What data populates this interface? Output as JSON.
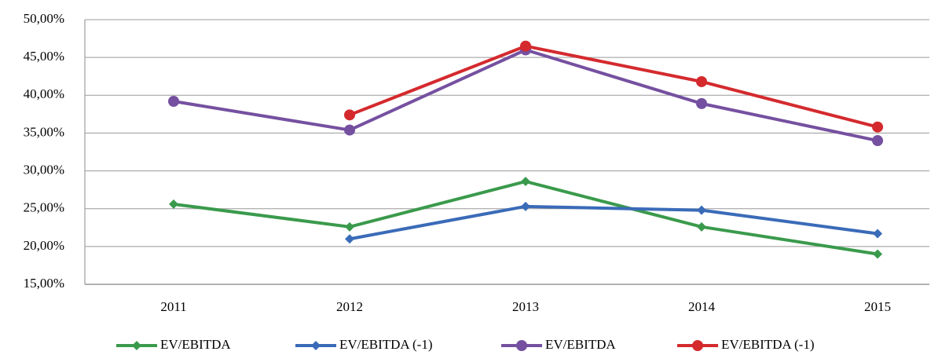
{
  "chart_data": {
    "type": "line",
    "categories": [
      "2011",
      "2012",
      "2013",
      "2014",
      "2015"
    ],
    "series": [
      {
        "name": "EV/EBITDA",
        "color": "#3a9a4c",
        "marker": "diamond",
        "values": [
          25.6,
          22.6,
          28.6,
          22.6,
          19.0
        ]
      },
      {
        "name": "EV/EBITDA (-1)",
        "color": "#3a6bb8",
        "marker": "diamond",
        "values": [
          null,
          21.0,
          25.3,
          24.8,
          21.7
        ]
      },
      {
        "name": "EV/EBITDA",
        "color": "#7550a0",
        "marker": "circle",
        "values": [
          39.2,
          35.4,
          46.0,
          38.9,
          34.0
        ]
      },
      {
        "name": "EV/EBITDA (-1)",
        "color": "#d42a2e",
        "marker": "circle",
        "values": [
          null,
          37.4,
          46.5,
          41.8,
          35.8
        ]
      }
    ],
    "ylim": [
      15,
      50
    ],
    "yticks": [
      {
        "value": 15,
        "label": "15,00%"
      },
      {
        "value": 20,
        "label": "20,00%"
      },
      {
        "value": 25,
        "label": "25,00%"
      },
      {
        "value": 30,
        "label": "30,00%"
      },
      {
        "value": 35,
        "label": "35,00%"
      },
      {
        "value": 40,
        "label": "40,00%"
      },
      {
        "value": 45,
        "label": "45,00%"
      },
      {
        "value": 50,
        "label": "50,00%"
      }
    ],
    "grid": true,
    "legend": "bottom"
  }
}
